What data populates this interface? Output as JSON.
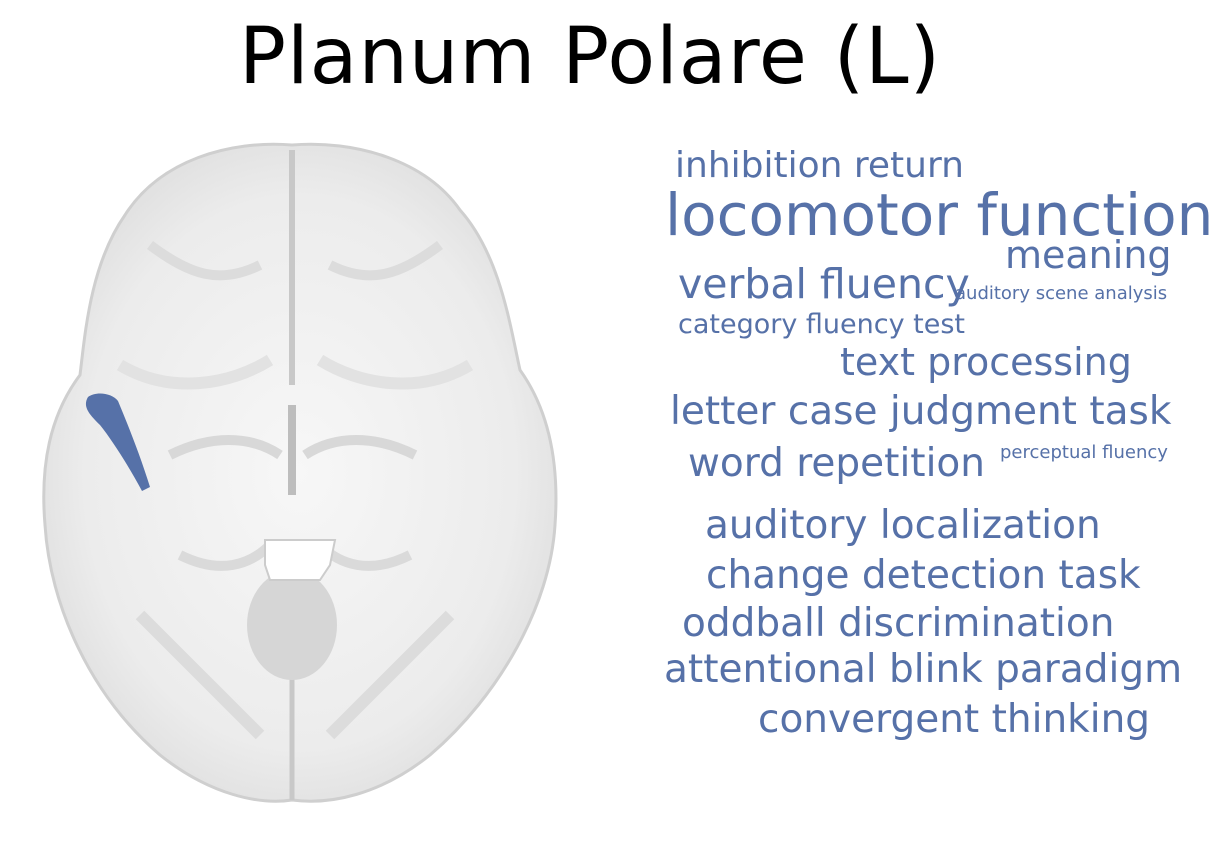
{
  "title": "Planum Polare (L)",
  "region_color": "#5671a8",
  "word_color": "#5671a8",
  "words": [
    "inhibition return",
    "locomotor function",
    "meaning",
    "verbal fluency",
    "auditory scene analysis",
    "category fluency test",
    "text processing",
    "letter case judgment task",
    "word repetition",
    "perceptual fluency",
    "auditory localization",
    "change detection task",
    "oddball discrimination",
    "attentional blink paradigm",
    "convergent thinking"
  ]
}
